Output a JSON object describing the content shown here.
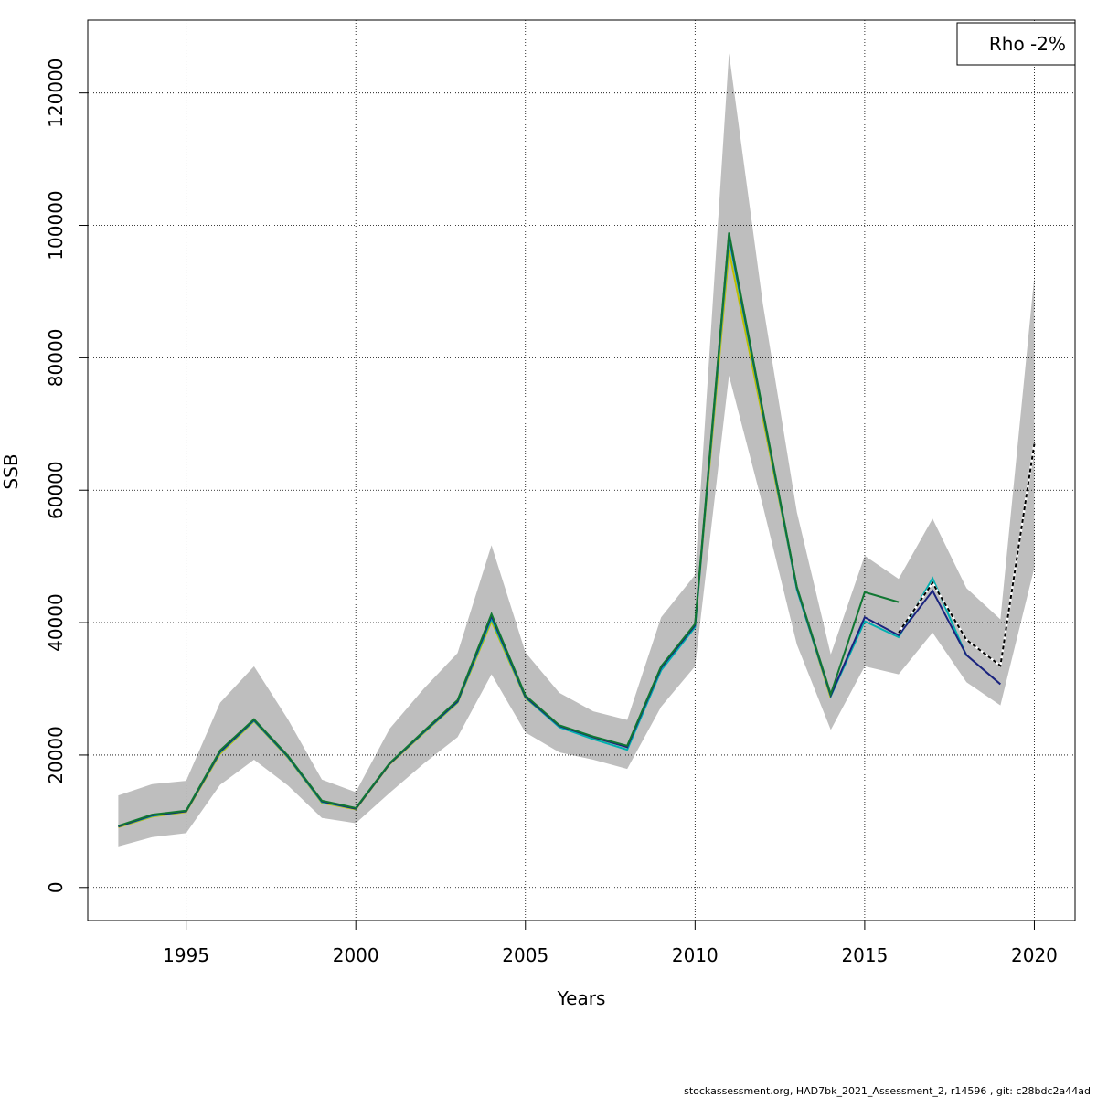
{
  "chart_data": {
    "type": "line",
    "xlabel": "Years",
    "ylabel": "SSB",
    "xlim": [
      1992.1,
      2021.2
    ],
    "ylim": [
      -5000,
      131000
    ],
    "x_ticks": [
      1995,
      2000,
      2005,
      2010,
      2015,
      2020
    ],
    "x_tick_labels": [
      "1995",
      "2000",
      "2005",
      "2010",
      "2015",
      "2020"
    ],
    "y_ticks": [
      0,
      20000,
      40000,
      60000,
      80000,
      100000,
      120000
    ],
    "y_tick_labels": [
      "0",
      "20000",
      "40000",
      "60000",
      "80000",
      "100000",
      "120000"
    ],
    "grid": "dotted",
    "legend": {
      "position": "top-right",
      "text": "Rho -2%"
    },
    "confidence_band": {
      "color": "#bebebe",
      "x": [
        1993,
        1994,
        1995,
        1996,
        1997,
        1998,
        1999,
        2000,
        2001,
        2002,
        2003,
        2004,
        2005,
        2006,
        2007,
        2008,
        2009,
        2010,
        2011,
        2012,
        2013,
        2014,
        2015,
        2016,
        2017,
        2018,
        2019,
        2020
      ],
      "lower": [
        6200,
        7600,
        8200,
        15500,
        19300,
        15400,
        10500,
        9700,
        14300,
        18700,
        22700,
        32200,
        23400,
        20400,
        19300,
        17900,
        27300,
        33400,
        77300,
        57600,
        36700,
        23800,
        33400,
        32200,
        38500,
        31000,
        27500,
        48300
      ],
      "upper": [
        13900,
        15600,
        16100,
        27900,
        33400,
        25400,
        16300,
        14400,
        24000,
        30000,
        35400,
        51700,
        35500,
        29400,
        26600,
        25300,
        40800,
        47200,
        126000,
        88100,
        56700,
        35200,
        50100,
        46600,
        55700,
        45200,
        40500,
        92300
      ]
    },
    "series": [
      {
        "color": "#bfbf00",
        "x": [
          1993,
          1994,
          1995,
          1996,
          1997,
          1998,
          1999,
          2000,
          2001,
          2002,
          2003,
          2004,
          2005,
          2006,
          2007,
          2008,
          2009,
          2010,
          2011,
          2012,
          2013,
          2014
        ],
        "values": [
          9100,
          10700,
          11400,
          20200,
          25100,
          19600,
          12800,
          11800,
          18600,
          23300,
          27900,
          40200,
          28600,
          24300,
          22600,
          21300,
          33300,
          39400,
          96200,
          70800,
          45100,
          28600
        ]
      },
      {
        "color": "#00b0b0",
        "x": [
          1993,
          1994,
          1995,
          1996,
          1997,
          1998,
          1999,
          2000,
          2001,
          2002,
          2003,
          2004,
          2005,
          2006,
          2007,
          2008,
          2009,
          2010,
          2011,
          2012,
          2013,
          2014,
          2015,
          2016,
          2017,
          2018
        ],
        "values": [
          9200,
          10800,
          11500,
          20400,
          25200,
          19700,
          12900,
          11900,
          18700,
          23400,
          28000,
          40600,
          28700,
          24200,
          22400,
          20800,
          32800,
          39300,
          98000,
          71600,
          45000,
          28900,
          40200,
          37800,
          46700,
          35000
        ]
      },
      {
        "color": "#1a237e",
        "x": [
          1993,
          1994,
          1995,
          1996,
          1997,
          1998,
          1999,
          2000,
          2001,
          2002,
          2003,
          2004,
          2005,
          2006,
          2007,
          2008,
          2009,
          2010,
          2011,
          2012,
          2013,
          2014,
          2015,
          2016,
          2017,
          2018,
          2019
        ],
        "values": [
          9200,
          10900,
          11500,
          20500,
          25300,
          19800,
          13000,
          11900,
          18700,
          23500,
          28100,
          41000,
          28800,
          24400,
          22700,
          21200,
          33200,
          39600,
          98600,
          71800,
          45300,
          29000,
          40800,
          38100,
          44800,
          35100,
          30700
        ]
      },
      {
        "color": "#000000",
        "dashed": true,
        "x": [
          2016,
          2017,
          2018,
          2019,
          2020
        ],
        "values": [
          38500,
          46000,
          37400,
          33500,
          67000
        ]
      },
      {
        "color": "#117733",
        "x": [
          1993,
          1994,
          1995,
          1996,
          1997,
          1998,
          1999,
          2000,
          2001,
          2002,
          2003,
          2004,
          2005,
          2006,
          2007,
          2008,
          2009,
          2010,
          2011,
          2012,
          2013,
          2014,
          2015,
          2016
        ],
        "values": [
          9300,
          11000,
          11600,
          20700,
          25400,
          19900,
          13100,
          12000,
          18800,
          23600,
          28300,
          41300,
          29000,
          24500,
          22800,
          21400,
          33400,
          39800,
          98900,
          72000,
          45400,
          29200,
          44600,
          43100
        ]
      }
    ]
  },
  "footer": "stockassessment.org, HAD7bk_2021_Assessment_2, r14596 , git: c28bdc2a44ad"
}
